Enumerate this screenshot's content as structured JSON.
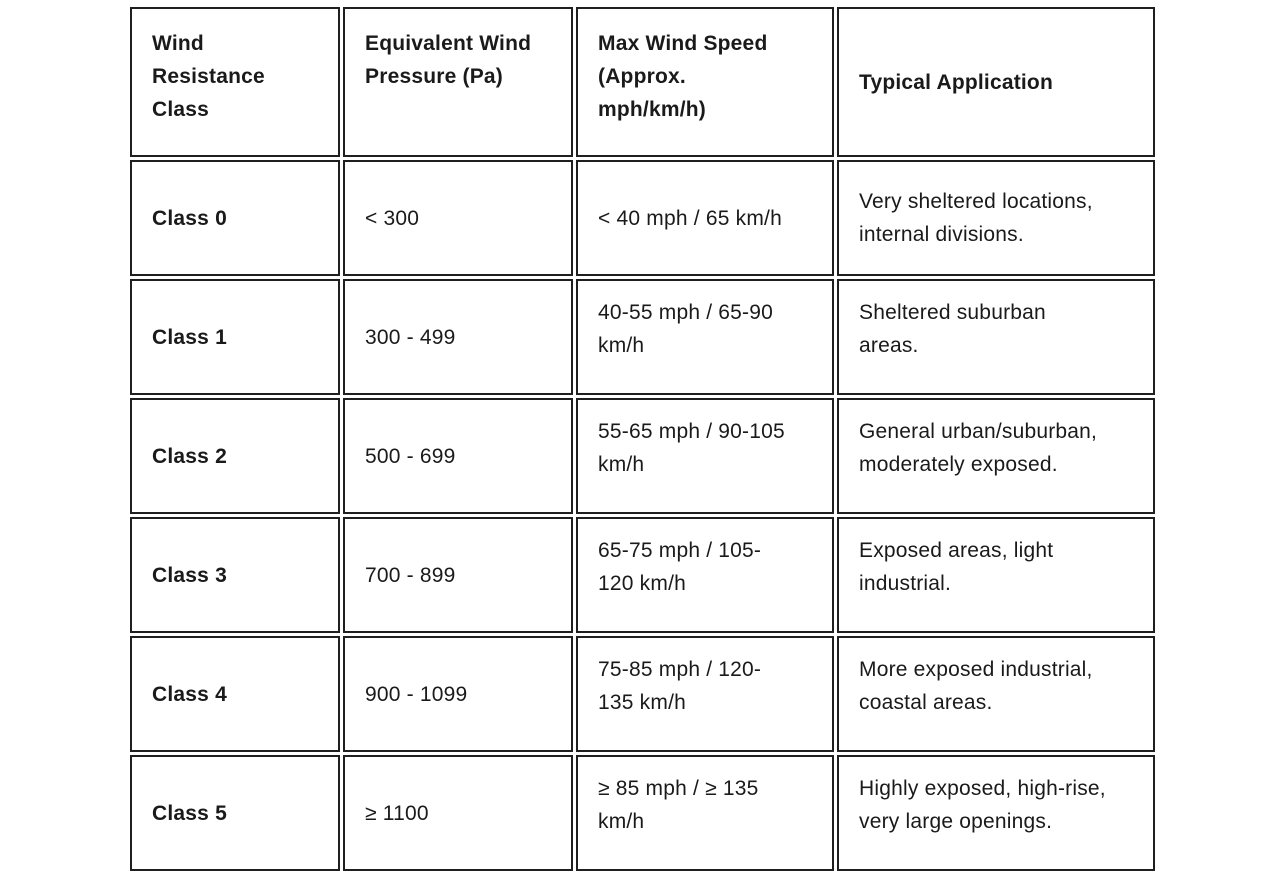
{
  "table": {
    "headers": [
      "Wind Resistance Class",
      "Equivalent Wind Pressure (Pa)",
      "Max Wind Speed (Approx. mph/km/h)",
      "Typical Application"
    ],
    "rows": [
      [
        "Class 0",
        "< 300",
        "< 40 mph / 65 km/h",
        "Very sheltered locations, internal divisions."
      ],
      [
        "Class 1",
        "300 - 499",
        "40-55 mph / 65-90 km/h",
        "Sheltered suburban areas."
      ],
      [
        "Class 2",
        "500 - 699",
        "55-65 mph / 90-105 km/h",
        "General urban/suburban, moderately exposed."
      ],
      [
        "Class 3",
        "700 - 899",
        "65-75 mph / 105-120 km/h",
        "Exposed areas, light industrial."
      ],
      [
        "Class 4",
        "900 - 1099",
        "75-85 mph / 120-135 km/h",
        "More exposed industrial, coastal areas."
      ],
      [
        "Class 5",
        "≥ 1100",
        "≥ 85 mph / ≥ 135 km/h",
        "Highly exposed, high-rise, very large openings."
      ]
    ]
  }
}
